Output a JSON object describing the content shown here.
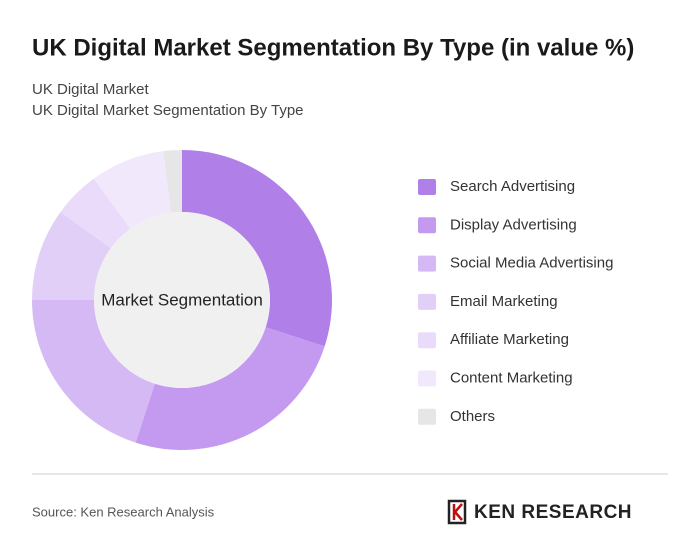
{
  "chart_data": {
    "type": "donut",
    "title": "UK Digital Market Segmentation By Type (in value %)",
    "subtitle": [
      "UK Digital Market",
      "UK Digital Market Segmentation By Type"
    ],
    "center_label": "Market Segmentation",
    "categories": [
      "Search Advertising",
      "Display Advertising",
      "Social Media Advertising",
      "Email Marketing",
      "Affiliate Marketing",
      "Content Marketing",
      "Others"
    ],
    "values": [
      30,
      25,
      20,
      10,
      5,
      8,
      2
    ],
    "colors": [
      "#b07fe8",
      "#c49af0",
      "#d5b9f4",
      "#e2cff7",
      "#eadbfa",
      "#f1e8fc",
      "#e6e6e6"
    ]
  },
  "source": "Source: Ken Research Analysis",
  "brand": "KEN RESEARCH"
}
